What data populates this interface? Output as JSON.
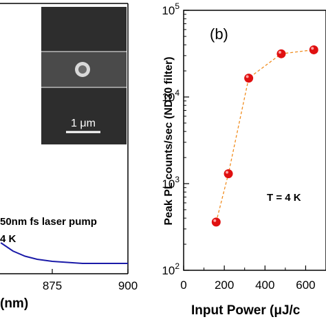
{
  "chart_data": [
    {
      "panel": "left (cropped)",
      "type": "line",
      "xlabel": "(nm)",
      "x_ticks": [
        "875",
        "900"
      ],
      "legend_lines": [
        "50nm fs laser pump",
        "4 K"
      ],
      "inset_scale_label": "1 μm",
      "series": [
        {
          "color": "#1a1aa8",
          "x": [
            858,
            862,
            866,
            870,
            875,
            880,
            885,
            890,
            895,
            900
          ],
          "y": [
            0.03,
            0.022,
            0.017,
            0.014,
            0.012,
            0.011,
            0.01,
            0.01,
            0.01,
            0.01
          ]
        }
      ]
    },
    {
      "panel": "right",
      "panel_label": "(b)",
      "type": "scatter",
      "xlabel": "Input Power (μJ/c",
      "ylabel": "Peak PL counts/sec (ND30 filter)",
      "yscale": "log",
      "ylim": [
        100,
        100000
      ],
      "xlim": [
        0,
        700
      ],
      "x_ticks": [
        "0",
        "200",
        "400",
        "600"
      ],
      "y_ticks": [
        {
          "base": "10",
          "exp": "2",
          "value": 100
        },
        {
          "base": "10",
          "exp": "3",
          "value": 1000
        },
        {
          "base": "10",
          "exp": "4",
          "value": 10000
        },
        {
          "base": "10",
          "exp": "5",
          "value": 100000
        }
      ],
      "annotation": "T = 4 K",
      "marker_color": "#e01010",
      "line_color": "#f08c1e",
      "x": [
        160,
        220,
        320,
        480,
        640
      ],
      "y": [
        360,
        1300,
        16500,
        31500,
        35000
      ]
    }
  ]
}
